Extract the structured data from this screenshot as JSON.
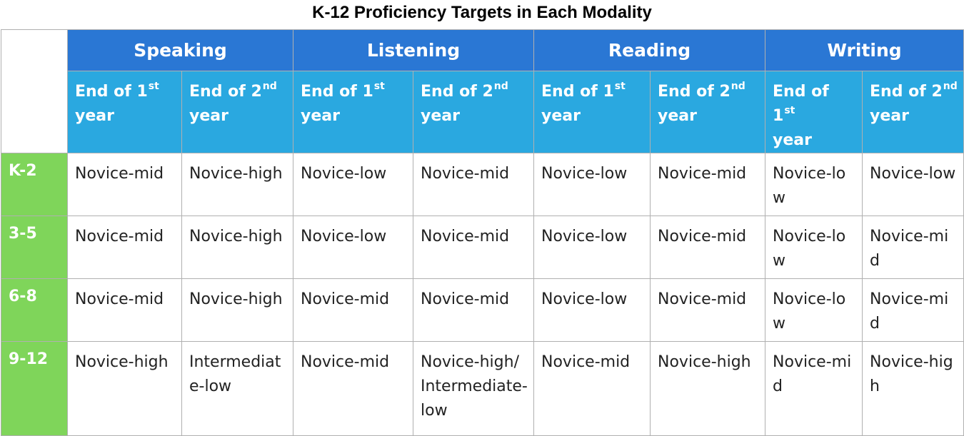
{
  "title": "K-12 Proficiency Targets in Each Modality",
  "modalities": [
    "Speaking",
    "Listening",
    "Reading",
    "Writing"
  ],
  "subheader": {
    "first_prefix": "End of 1",
    "first_sup": "st",
    "second_prefix": "End of 2",
    "second_sup": "nd",
    "year": "year"
  },
  "rows": [
    {
      "grade": "K-2",
      "cells": [
        "Novice-mid",
        "Novice-high",
        "Novice-low",
        "Novice-mid",
        "Novice-low",
        "Novice-mid",
        "Novice-low",
        "Novice-low"
      ]
    },
    {
      "grade": "3-5",
      "cells": [
        "Novice-mid",
        "Novice-high",
        "Novice-low",
        "Novice-mid",
        "Novice-low",
        "Novice-mid",
        "Novice-low",
        "Novice-mid"
      ]
    },
    {
      "grade": "6-8",
      "cells": [
        "Novice-mid",
        "Novice-high",
        "Novice-mid",
        "Novice-mid",
        "Novice-low",
        "Novice-mid",
        "Novice-low",
        "Novice-mid"
      ]
    },
    {
      "grade": "9-12",
      "cells": [
        "Novice-high",
        "Intermediate-low",
        "Novice-mid",
        "Novice-high/ Intermediate-low",
        "Novice-mid",
        "Novice-high",
        "Novice-mid",
        "Novice-high"
      ]
    }
  ],
  "colors": {
    "modality_header": "#2a77d4",
    "sub_header": "#2aa8e0",
    "grade_column": "#7fd55a"
  }
}
